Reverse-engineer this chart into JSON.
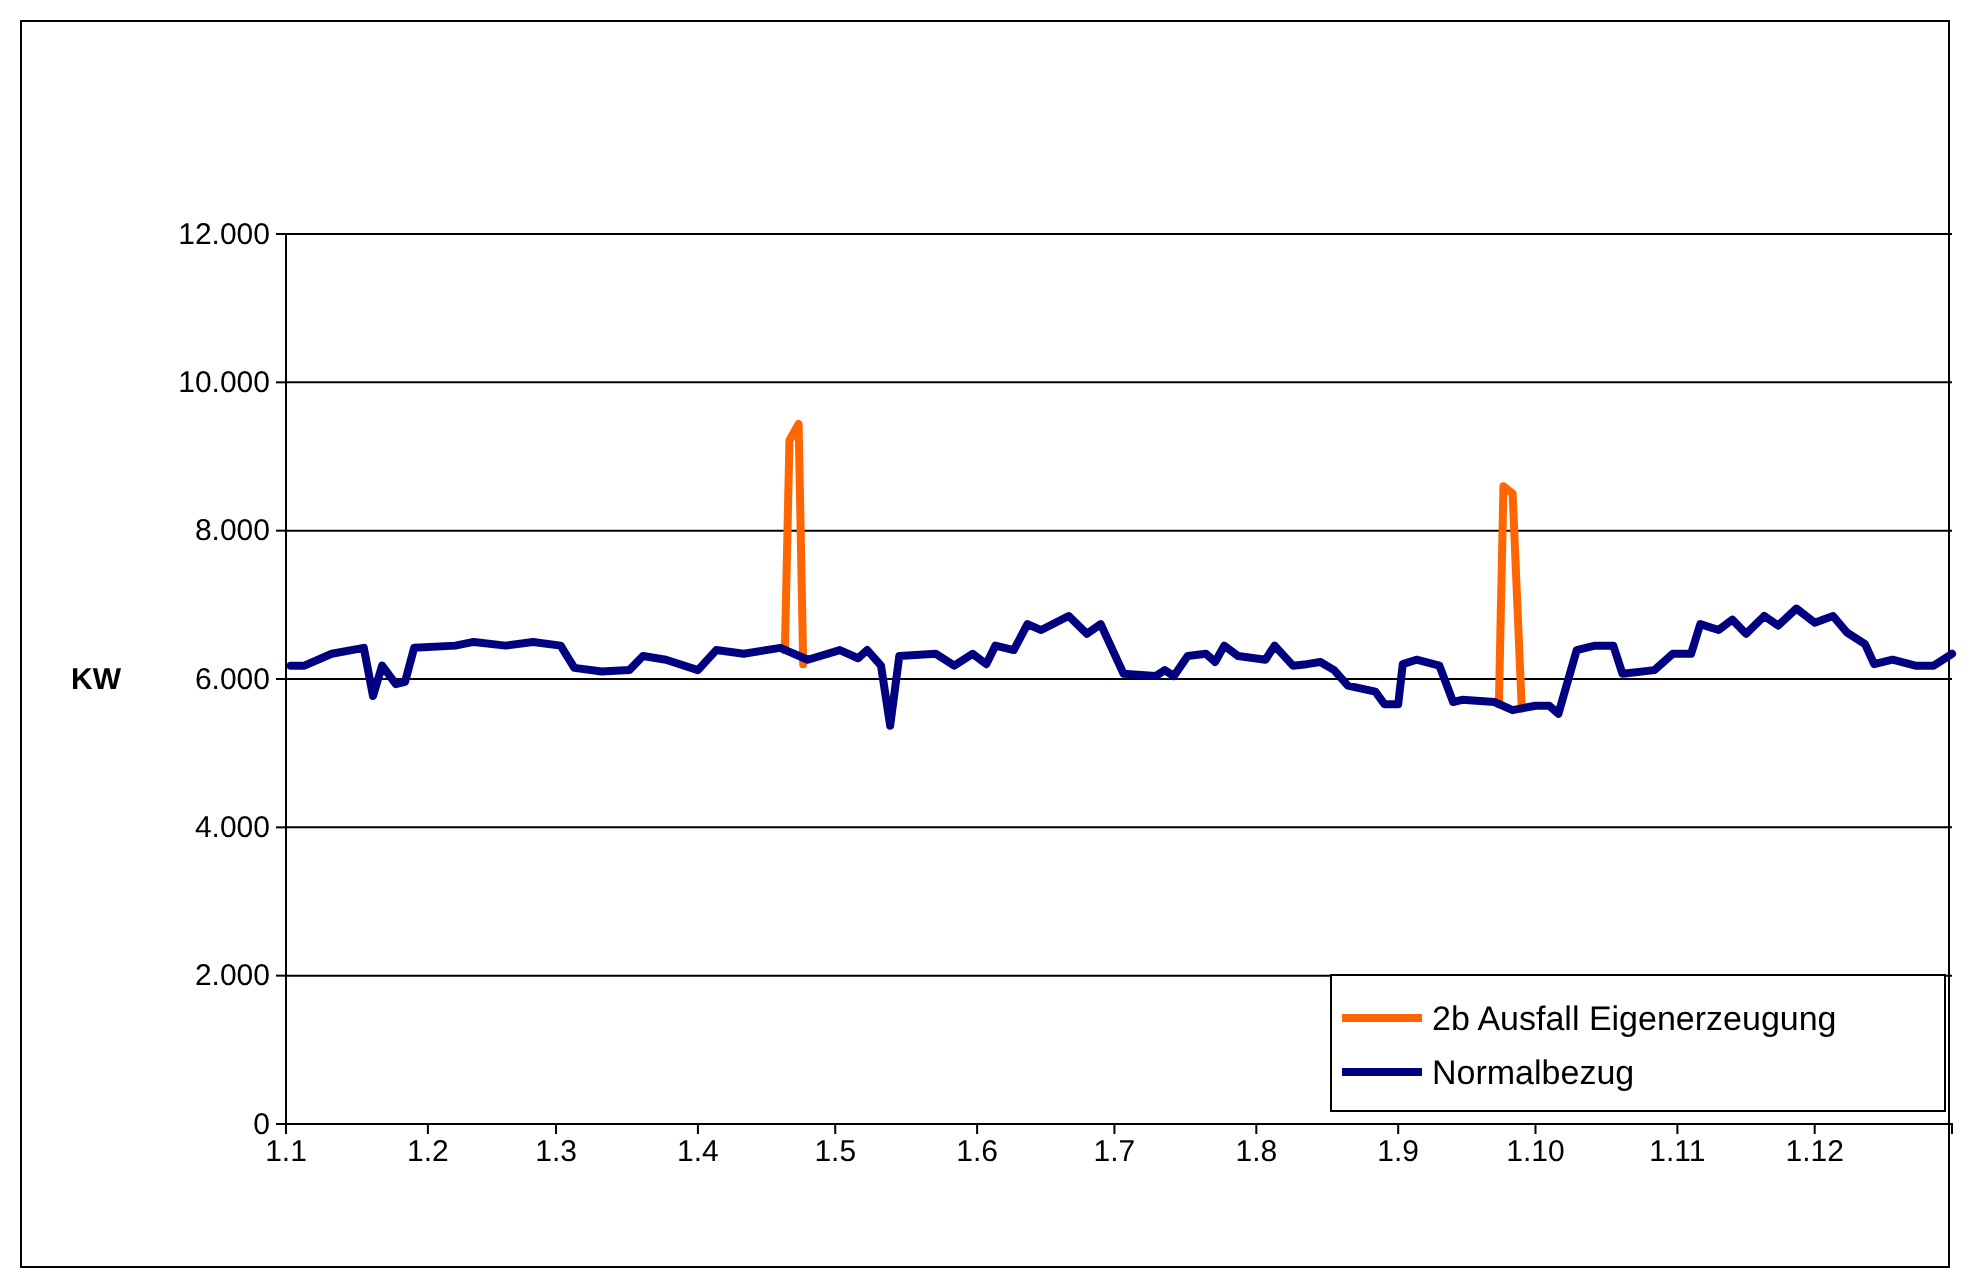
{
  "chart_data": {
    "type": "line",
    "ylabel": "KW",
    "xlim": [
      "--01-01",
      "--12-31"
    ],
    "xticks": [
      {
        "value": "--01-01",
        "label": "1.1"
      },
      {
        "value": "--02-01",
        "label": "1.2"
      },
      {
        "value": "--03-01",
        "label": "1.3"
      },
      {
        "value": "--04-01",
        "label": "1.4"
      },
      {
        "value": "--05-01",
        "label": "1.5"
      },
      {
        "value": "--06-01",
        "label": "1.6"
      },
      {
        "value": "--07-01",
        "label": "1.7"
      },
      {
        "value": "--08-01",
        "label": "1.8"
      },
      {
        "value": "--09-01",
        "label": "1.9"
      },
      {
        "value": "--10-01",
        "label": "1.10"
      },
      {
        "value": "--11-01",
        "label": "1.11"
      },
      {
        "value": "--12-01",
        "label": "1.12"
      }
    ],
    "ylim": [
      0,
      12
    ],
    "yticks": [
      0,
      {
        "value": 2,
        "label": "2.000"
      },
      {
        "value": 4,
        "label": "4.000"
      },
      {
        "value": 6,
        "label": "6.000"
      },
      {
        "value": 8,
        "label": "8.000"
      },
      {
        "value": 10,
        "label": "10.000"
      },
      {
        "value": 12,
        "label": "12.000"
      }
    ],
    "grid": "y",
    "legend": "bottom right",
    "line_style": "solid",
    "marker": "none",
    "series": [
      {
        "name": "2b Ausfall Eigenerzeugung",
        "color": "#ff6600",
        "x": [
          "--04-20",
          "--04-21",
          "--04-23",
          "--04-24",
          "--06-01",
          "--09-23",
          "--09-24",
          "--09-26",
          "--09-28"
        ],
        "values": [
          6.39,
          9.22,
          9.44,
          6.2,
          null,
          5.66,
          8.6,
          8.5,
          5.6
        ]
      },
      {
        "name": "Normalbezug",
        "color": "#000080",
        "x": [
          "--01-02",
          "--01-05",
          "--01-11",
          "--01-18",
          "--01-20",
          "--01-22",
          "--01-25",
          "--01-27",
          "--01-29",
          "--02-07",
          "--02-11",
          "--02-18",
          "--02-24",
          "--03-02",
          "--03-05",
          "--03-11",
          "--03-17",
          "--03-20",
          "--03-25",
          "--04-01",
          "--04-05",
          "--04-11",
          "--04-19",
          "--04-25",
          "--05-02",
          "--05-06",
          "--05-08",
          "--05-11",
          "--05-13",
          "--05-15",
          "--05-23",
          "--05-27",
          "--05-31",
          "--06-03",
          "--06-05",
          "--06-09",
          "--06-12",
          "--06-15",
          "--06-21",
          "--06-25",
          "--06-28",
          "--07-03",
          "--07-10",
          "--07-12",
          "--07-14",
          "--07-17",
          "--07-21",
          "--07-23",
          "--07-25",
          "--07-28",
          "--08-03",
          "--08-05",
          "--08-09",
          "--08-12",
          "--08-15",
          "--08-18",
          "--08-21",
          "--08-27",
          "--08-29",
          "--09-01",
          "--09-02",
          "--09-05",
          "--09-10",
          "--09-13",
          "--09-15",
          "--09-22",
          "--09-26",
          "--10-01",
          "--10-04",
          "--10-06",
          "--10-10",
          "--10-14",
          "--10-18",
          "--10-20",
          "--10-27",
          "--10-31",
          "--11-04",
          "--11-06",
          "--11-10",
          "--11-13",
          "--11-16",
          "--11-20",
          "--11-23",
          "--11-27",
          "--12-01",
          "--12-05",
          "--12-08",
          "--12-12",
          "--12-14",
          "--12-18",
          "--12-23",
          "--12-27",
          "--12-31"
        ],
        "values": [
          6.18,
          6.18,
          6.34,
          6.42,
          5.77,
          6.18,
          5.93,
          5.96,
          6.42,
          6.45,
          6.5,
          6.45,
          6.5,
          6.45,
          6.15,
          6.1,
          6.12,
          6.31,
          6.26,
          6.12,
          6.39,
          6.34,
          6.42,
          6.26,
          6.39,
          6.28,
          6.39,
          6.18,
          5.37,
          6.31,
          6.34,
          6.18,
          6.34,
          6.2,
          6.45,
          6.39,
          6.74,
          6.66,
          6.85,
          6.61,
          6.74,
          6.07,
          6.04,
          6.12,
          6.04,
          6.31,
          6.34,
          6.23,
          6.45,
          6.31,
          6.26,
          6.45,
          6.18,
          6.2,
          6.23,
          6.12,
          5.91,
          5.83,
          5.66,
          5.66,
          6.2,
          6.26,
          6.18,
          5.69,
          5.72,
          5.69,
          5.58,
          5.64,
          5.64,
          5.53,
          6.39,
          6.45,
          6.45,
          6.07,
          6.12,
          6.34,
          6.34,
          6.74,
          6.66,
          6.8,
          6.61,
          6.85,
          6.72,
          6.95,
          6.76,
          6.85,
          6.63,
          6.47,
          6.2,
          6.26,
          6.18,
          6.18,
          6.34
        ]
      }
    ]
  }
}
